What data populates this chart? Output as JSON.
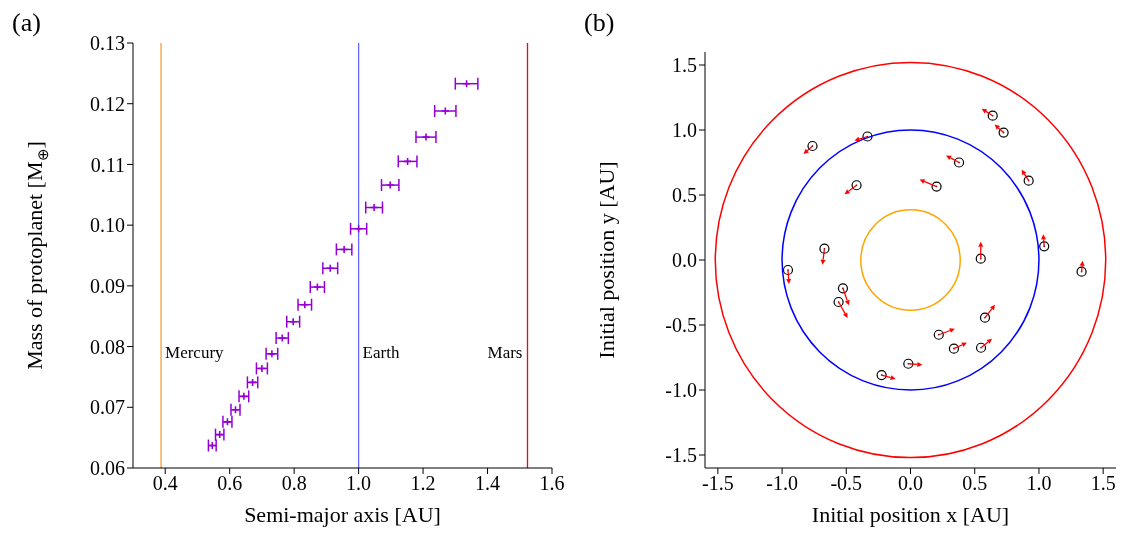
{
  "chart_data": [
    {
      "type": "scatter",
      "title": "(a)",
      "xlabel": "Semi-major axis [AU]",
      "ylabel": "Mass of protoplanet [M$_{⊕}$]",
      "xlim": [
        0.3,
        1.6
      ],
      "ylim": [
        0.06,
        0.13
      ],
      "xticks": [
        0.4,
        0.6,
        0.8,
        {
          "value": 1,
          "label": "1.0"
        },
        1.2,
        1.4,
        1.6
      ],
      "yticks": [
        0.06,
        0.07,
        0.08,
        0.09,
        {
          "value": 0.1,
          "label": "0.10"
        },
        0.11,
        0.12,
        0.13
      ],
      "ref_lines": [
        {
          "axis": "x",
          "value": 0.387,
          "label": "Mercury",
          "color": "#f0a030"
        },
        {
          "axis": "x",
          "value": 1.0,
          "label": "Earth",
          "color": "#6666ff"
        },
        {
          "axis": "x",
          "value": 1.524,
          "label": "Mars",
          "color": "#ff0000"
        }
      ],
      "series": [
        {
          "color": "#9400d3",
          "marker": "cross",
          "x": [
            0.546,
            0.569,
            0.593,
            0.618,
            0.644,
            0.671,
            0.7,
            0.731,
            0.763,
            0.797,
            0.833,
            0.872,
            0.912,
            0.955,
            1.0,
            1.048,
            1.098,
            1.152,
            1.209,
            1.269,
            1.335
          ],
          "values": [
            0.0637,
            0.0655,
            0.0676,
            0.0696,
            0.0718,
            0.0741,
            0.0764,
            0.0788,
            0.0814,
            0.0841,
            0.0869,
            0.0898,
            0.0929,
            0.096,
            0.0994,
            0.1029,
            0.1066,
            0.1105,
            0.1145,
            0.1188,
            0.1233
          ],
          "xerrors": [
            0.012,
            0.013,
            0.014,
            0.014,
            0.015,
            0.016,
            0.017,
            0.018,
            0.019,
            0.02,
            0.021,
            0.022,
            0.023,
            0.024,
            0.025,
            0.026,
            0.027,
            0.029,
            0.031,
            0.033,
            0.035
          ]
        }
      ]
    },
    {
      "type": "scatter",
      "title": "(b)",
      "xlabel": "Initial position x [AU]",
      "ylabel": "Initial position y [AU]",
      "xlim": [
        -1.6,
        1.6
      ],
      "ylim": [
        -1.6,
        1.6
      ],
      "xticks": [
        -1.5,
        {
          "value": -1,
          "label": "-1.0"
        },
        -0.5,
        {
          "value": 0,
          "label": "0.0"
        },
        0.5,
        {
          "value": 1,
          "label": "1.0"
        },
        1.5
      ],
      "yticks": [
        -1.5,
        {
          "value": -1,
          "label": "-1.0"
        },
        -0.5,
        {
          "value": 0,
          "label": "0.0"
        },
        0.5,
        {
          "value": 1,
          "label": "1.0"
        },
        1.5
      ],
      "series": [
        {
          "type": "scatter",
          "color": "#000000",
          "marker": "circle",
          "x": [
            0.64,
            0.725,
            -0.335,
            -0.763,
            0.378,
            0.92,
            0.203,
            -0.42,
            -0.67,
            -0.954,
            0.547,
            1.041,
            1.332,
            -0.526,
            -0.56,
            0.58,
            0.22,
            0.338,
            0.549,
            -0.017,
            -0.225
          ],
          "values": [
            1.11,
            0.98,
            0.95,
            0.877,
            0.75,
            0.61,
            0.565,
            0.575,
            0.087,
            -0.077,
            0.01,
            0.105,
            -0.09,
            -0.218,
            -0.323,
            -0.444,
            -0.575,
            -0.682,
            -0.675,
            -0.798,
            -0.885
          ]
        }
      ]
    }
  ]
}
